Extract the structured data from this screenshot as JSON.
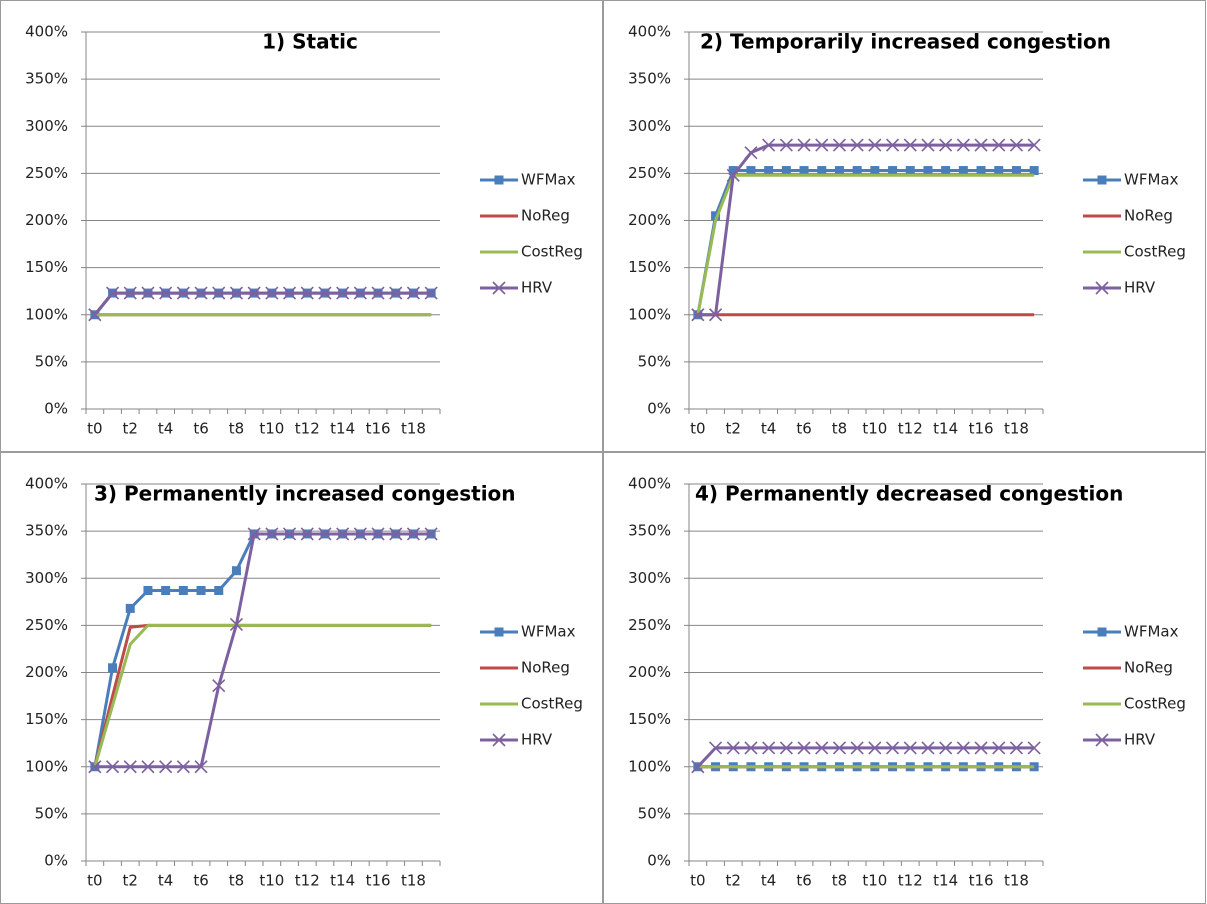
{
  "chart_data": [
    {
      "type": "line",
      "title": "1) Static",
      "categories": [
        "t0",
        null,
        "t2",
        null,
        "t4",
        null,
        "t6",
        null,
        "t8",
        null,
        "t10",
        null,
        "t12",
        null,
        "t14",
        null,
        "t16",
        null,
        "t18",
        null
      ],
      "ylim": [
        0,
        400
      ],
      "yticks": [
        {
          "value": 0,
          "label": "0%"
        },
        {
          "value": 50,
          "label": "50%"
        },
        {
          "value": 100,
          "label": "100%"
        },
        {
          "value": 150,
          "label": "150%"
        },
        {
          "value": 200,
          "label": "200%"
        },
        {
          "value": 250,
          "label": "250%"
        },
        {
          "value": 300,
          "label": "300%"
        },
        {
          "value": 350,
          "label": "350%"
        },
        {
          "value": 400,
          "label": "400%"
        }
      ],
      "grid": true,
      "series": [
        {
          "name": "WFMax",
          "color": "#4a7ebb",
          "marker": "square",
          "values": [
            100,
            123,
            123,
            123,
            123,
            123,
            123,
            123,
            123,
            123,
            123,
            123,
            123,
            123,
            123,
            123,
            123,
            123,
            123,
            123
          ]
        },
        {
          "name": "NoReg",
          "color": "#be4b48",
          "marker": "none",
          "values": [
            100,
            100,
            100,
            100,
            100,
            100,
            100,
            100,
            100,
            100,
            100,
            100,
            100,
            100,
            100,
            100,
            100,
            100,
            100,
            100
          ]
        },
        {
          "name": "CostReg",
          "color": "#98b954",
          "marker": "none",
          "values": [
            100,
            100,
            100,
            100,
            100,
            100,
            100,
            100,
            100,
            100,
            100,
            100,
            100,
            100,
            100,
            100,
            100,
            100,
            100,
            100
          ]
        },
        {
          "name": "HRV",
          "color": "#7d60a0",
          "marker": "x",
          "values": [
            100,
            123,
            123,
            123,
            123,
            123,
            123,
            123,
            123,
            123,
            123,
            123,
            123,
            123,
            123,
            123,
            123,
            123,
            123,
            123
          ]
        }
      ]
    },
    {
      "type": "line",
      "title": "2) Temporarily increased congestion",
      "categories": [
        "t0",
        null,
        "t2",
        null,
        "t4",
        null,
        "t6",
        null,
        "t8",
        null,
        "t10",
        null,
        "t12",
        null,
        "t14",
        null,
        "t16",
        null,
        "t18",
        null
      ],
      "ylim": [
        0,
        400
      ],
      "yticks": [
        {
          "value": 0,
          "label": "0%"
        },
        {
          "value": 50,
          "label": "50%"
        },
        {
          "value": 100,
          "label": "100%"
        },
        {
          "value": 150,
          "label": "150%"
        },
        {
          "value": 200,
          "label": "200%"
        },
        {
          "value": 250,
          "label": "250%"
        },
        {
          "value": 300,
          "label": "300%"
        },
        {
          "value": 350,
          "label": "350%"
        },
        {
          "value": 400,
          "label": "400%"
        }
      ],
      "grid": true,
      "series": [
        {
          "name": "WFMax",
          "color": "#4a7ebb",
          "marker": "square",
          "values": [
            100,
            205,
            253,
            253,
            253,
            253,
            253,
            253,
            253,
            253,
            253,
            253,
            253,
            253,
            253,
            253,
            253,
            253,
            253,
            253
          ]
        },
        {
          "name": "NoReg",
          "color": "#be4b48",
          "marker": "none",
          "values": [
            100,
            100,
            100,
            100,
            100,
            100,
            100,
            100,
            100,
            100,
            100,
            100,
            100,
            100,
            100,
            100,
            100,
            100,
            100,
            100
          ]
        },
        {
          "name": "CostReg",
          "color": "#98b954",
          "marker": "none",
          "values": [
            100,
            200,
            248,
            248,
            248,
            248,
            248,
            248,
            248,
            248,
            248,
            248,
            248,
            248,
            248,
            248,
            248,
            248,
            248,
            248
          ]
        },
        {
          "name": "HRV",
          "color": "#7d60a0",
          "marker": "x",
          "values": [
            100,
            100,
            248,
            272,
            280,
            280,
            280,
            280,
            280,
            280,
            280,
            280,
            280,
            280,
            280,
            280,
            280,
            280,
            280,
            280
          ]
        }
      ]
    },
    {
      "type": "line",
      "title": "3) Permanently increased congestion",
      "categories": [
        "t0",
        null,
        "t2",
        null,
        "t4",
        null,
        "t6",
        null,
        "t8",
        null,
        "t10",
        null,
        "t12",
        null,
        "t14",
        null,
        "t16",
        null,
        "t18",
        null
      ],
      "ylim": [
        0,
        400
      ],
      "yticks": [
        {
          "value": 0,
          "label": "0%"
        },
        {
          "value": 50,
          "label": "50%"
        },
        {
          "value": 100,
          "label": "100%"
        },
        {
          "value": 150,
          "label": "150%"
        },
        {
          "value": 200,
          "label": "200%"
        },
        {
          "value": 250,
          "label": "250%"
        },
        {
          "value": 300,
          "label": "300%"
        },
        {
          "value": 350,
          "label": "350%"
        },
        {
          "value": 400,
          "label": "400%"
        }
      ],
      "grid": true,
      "series": [
        {
          "name": "WFMax",
          "color": "#4a7ebb",
          "marker": "square",
          "values": [
            100,
            205,
            268,
            287,
            287,
            287,
            287,
            287,
            308,
            347,
            347,
            347,
            347,
            347,
            347,
            347,
            347,
            347,
            347,
            347
          ]
        },
        {
          "name": "NoReg",
          "color": "#be4b48",
          "marker": "none",
          "values": [
            100,
            175,
            248,
            250,
            250,
            250,
            250,
            250,
            250,
            250,
            250,
            250,
            250,
            250,
            250,
            250,
            250,
            250,
            250,
            250
          ]
        },
        {
          "name": "CostReg",
          "color": "#98b954",
          "marker": "none",
          "values": [
            100,
            165,
            230,
            250,
            250,
            250,
            250,
            250,
            250,
            250,
            250,
            250,
            250,
            250,
            250,
            250,
            250,
            250,
            250,
            250
          ]
        },
        {
          "name": "HRV",
          "color": "#7d60a0",
          "marker": "x",
          "values": [
            100,
            100,
            100,
            100,
            100,
            100,
            100,
            186,
            251,
            347,
            347,
            347,
            347,
            347,
            347,
            347,
            347,
            347,
            347,
            347
          ]
        }
      ]
    },
    {
      "type": "line",
      "title": "4) Permanently decreased congestion",
      "categories": [
        "t0",
        null,
        "t2",
        null,
        "t4",
        null,
        "t6",
        null,
        "t8",
        null,
        "t10",
        null,
        "t12",
        null,
        "t14",
        null,
        "t16",
        null,
        "t18",
        null
      ],
      "ylim": [
        0,
        400
      ],
      "yticks": [
        {
          "value": 0,
          "label": "0%"
        },
        {
          "value": 50,
          "label": "50%"
        },
        {
          "value": 100,
          "label": "100%"
        },
        {
          "value": 150,
          "label": "150%"
        },
        {
          "value": 200,
          "label": "200%"
        },
        {
          "value": 250,
          "label": "250%"
        },
        {
          "value": 300,
          "label": "300%"
        },
        {
          "value": 350,
          "label": "350%"
        },
        {
          "value": 400,
          "label": "400%"
        }
      ],
      "grid": true,
      "series": [
        {
          "name": "WFMax",
          "color": "#4a7ebb",
          "marker": "square",
          "values": [
            100,
            100,
            100,
            100,
            100,
            100,
            100,
            100,
            100,
            100,
            100,
            100,
            100,
            100,
            100,
            100,
            100,
            100,
            100,
            100
          ]
        },
        {
          "name": "NoReg",
          "color": "#be4b48",
          "marker": "none",
          "values": [
            100,
            100,
            100,
            100,
            100,
            100,
            100,
            100,
            100,
            100,
            100,
            100,
            100,
            100,
            100,
            100,
            100,
            100,
            100,
            100
          ]
        },
        {
          "name": "CostReg",
          "color": "#98b954",
          "marker": "none",
          "values": [
            100,
            100,
            100,
            100,
            100,
            100,
            100,
            100,
            100,
            100,
            100,
            100,
            100,
            100,
            100,
            100,
            100,
            100,
            100,
            100
          ]
        },
        {
          "name": "HRV",
          "color": "#7d60a0",
          "marker": "x",
          "values": [
            100,
            120,
            120,
            120,
            120,
            120,
            120,
            120,
            120,
            120,
            120,
            120,
            120,
            120,
            120,
            120,
            120,
            120,
            120,
            120
          ]
        }
      ]
    }
  ]
}
